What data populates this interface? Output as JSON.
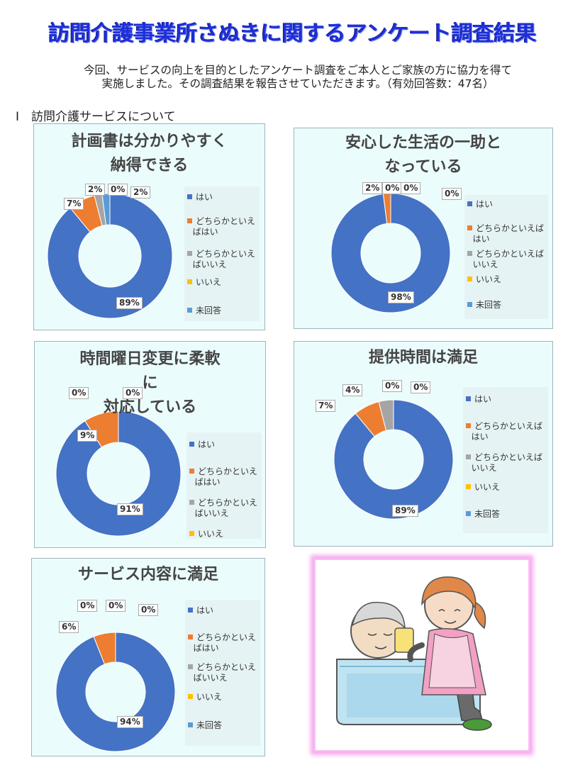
{
  "header": {
    "title": "訪問介護事業所さぬきに関するアンケート調査結果",
    "intro_line1": "今回、サービスの向上を目的としたアンケート調査をご本人とご家族の方に協力を得て",
    "intro_line2": "実施しました。その調査結果を報告させていただきます。（有効回答数：47名）",
    "section": "Ⅰ　訪問介護サービスについて"
  },
  "colors": [
    "#4472c4",
    "#ed7d31",
    "#a5a5a5",
    "#ffc000",
    "#5b9bd5"
  ],
  "chart_data": [
    {
      "type": "pie",
      "title_lines": [
        "計画書は分かりやすく",
        "納得できる"
      ],
      "categories": [
        "はい",
        "どちらかといえばはい",
        "どちらかといえばいいえ",
        "いいえ",
        "未回答"
      ],
      "legend_labels": [
        "はい",
        "どちらかといえ\nばはい",
        "どちらかといえ\nばいいえ",
        "いいえ",
        "未回答"
      ],
      "values": [
        89,
        7,
        2,
        0,
        2
      ],
      "data_labels": [
        "89%",
        "7%",
        "2%",
        "0%",
        "2%"
      ]
    },
    {
      "type": "pie",
      "title_lines": [
        "安心した生活の一助と",
        "なっている"
      ],
      "categories": [
        "はい",
        "どちらかといえばはい",
        "どちらかといえばいいえ",
        "いいえ",
        "未回答"
      ],
      "legend_labels": [
        "はい",
        "どちらかといえば\nはい",
        "どちらかといえば\nいいえ",
        "いいえ",
        "未回答"
      ],
      "values": [
        98,
        2,
        0,
        0,
        0
      ],
      "data_labels": [
        "98%",
        "2%",
        "0%",
        "0%",
        "0%"
      ]
    },
    {
      "type": "pie",
      "title_lines": [
        "時間曜日変更に柔軟",
        "に",
        "対応している"
      ],
      "categories": [
        "はい",
        "どちらかといえばはい",
        "どちらかといえばいいえ",
        "いいえ"
      ],
      "legend_labels": [
        "はい",
        "どちらかといえ\nばはい",
        "どちらかといえ\nばいいえ",
        "いいえ"
      ],
      "values": [
        91,
        9,
        0,
        0
      ],
      "data_labels": [
        "91%",
        "9%",
        "0%",
        "0%"
      ]
    },
    {
      "type": "pie",
      "title_lines": [
        "提供時間は満足"
      ],
      "categories": [
        "はい",
        "どちらかといえばはい",
        "どちらかといえばいいえ",
        "いいえ",
        "未回答"
      ],
      "legend_labels": [
        "はい",
        "どちらかといえば\nはい",
        "どちらかといえば\nいいえ",
        "いいえ",
        "未回答"
      ],
      "values": [
        89,
        7,
        4,
        0,
        0
      ],
      "data_labels": [
        "89%",
        "7%",
        "4%",
        "0%",
        "0%"
      ]
    },
    {
      "type": "pie",
      "title_lines": [
        "サービス内容に満足"
      ],
      "categories": [
        "はい",
        "どちらかといえばはい",
        "どちらかといえばいいえ",
        "いいえ",
        "未回答"
      ],
      "legend_labels": [
        "はい",
        "どちらかといえ\nばはい",
        "どちらかといえ\nばいいえ",
        "いいえ",
        "未回答"
      ],
      "values": [
        94,
        6,
        0,
        0,
        0
      ],
      "data_labels": [
        "94%",
        "6%",
        "0%",
        "0%",
        "0%"
      ]
    }
  ]
}
